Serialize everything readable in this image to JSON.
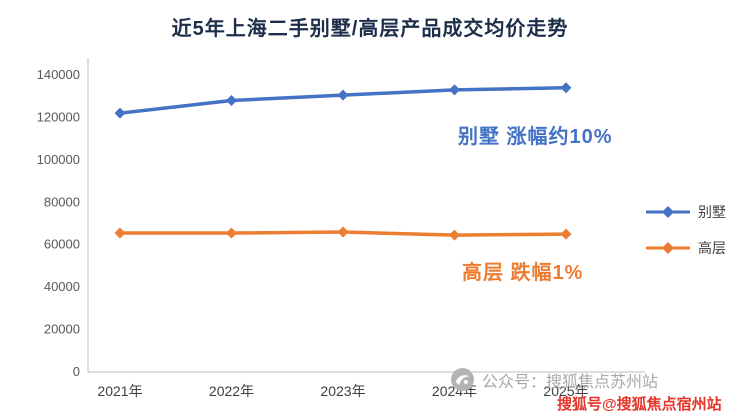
{
  "chart_data": {
    "type": "line",
    "title": "近5年上海二手别墅/高层产品成交均价走势",
    "categories": [
      "2021年",
      "2022年",
      "2023年",
      "2024年",
      "2025年"
    ],
    "series": [
      {
        "name": "别墅",
        "color": "#4472C4",
        "values": [
          122000,
          128000,
          130500,
          133000,
          134000
        ]
      },
      {
        "name": "高层",
        "color": "#ED7D31",
        "values": [
          65500,
          65500,
          66000,
          64500,
          65000
        ]
      }
    ],
    "ylim": [
      0,
      140000
    ],
    "yticks": [
      0,
      20000,
      40000,
      60000,
      80000,
      100000,
      120000,
      140000
    ],
    "grid": false,
    "legend_position": "right",
    "annotations": [
      {
        "text": "别墅 涨幅约10%",
        "color": "#4472C4"
      },
      {
        "text": "高层 跌幅1%",
        "color": "#ED7D31"
      }
    ]
  },
  "watermark": {
    "text": "公众号：搜狐焦点苏州站",
    "logo": "sohu-focus-logo"
  },
  "footer_badge": {
    "text": "搜狐号@搜狐焦点宿州站",
    "color": "#E5352B"
  }
}
